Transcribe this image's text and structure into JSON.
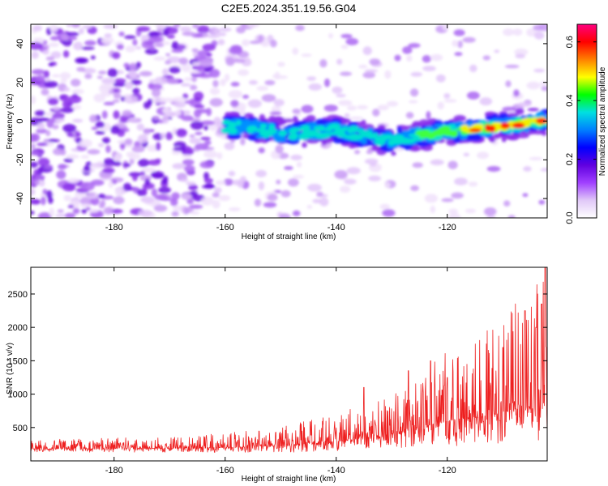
{
  "title": "C2E5.2024.351.19.56.G04",
  "chart_data": [
    {
      "type": "heatmap",
      "xlabel": "Height of straight line (km)",
      "ylabel": "Frequency (Hz)",
      "xlim": [
        -195,
        -102
      ],
      "ylim": [
        -50,
        50
      ],
      "xticks": [
        -180,
        -160,
        -140,
        -120
      ],
      "yticks": [
        -40,
        -20,
        0,
        20,
        40
      ],
      "colorbar": {
        "label": "Normalized spectral amplitude",
        "range": [
          0.0,
          0.66
        ],
        "ticks": [
          0.0,
          0.2,
          0.4,
          0.6
        ],
        "colors": [
          "#ffffff",
          "#e0c8f8",
          "#a040ff",
          "#6000e0",
          "#0000ff",
          "#0080ff",
          "#00e0e0",
          "#00ff00",
          "#ffff00",
          "#ff8000",
          "#ff0000",
          "#ff0080"
        ]
      },
      "ridge": {
        "description": "high-amplitude band centred near 0 Hz",
        "x_start": -160,
        "x_end": -102,
        "centre_hz": [
          {
            "x": -157,
            "y": -3
          },
          {
            "x": -150,
            "y": -6
          },
          {
            "x": -140,
            "y": -5
          },
          {
            "x": -130,
            "y": -10
          },
          {
            "x": -122,
            "y": -6
          },
          {
            "x": -115,
            "y": -4
          },
          {
            "x": -108,
            "y": -2
          },
          {
            "x": -103,
            "y": 0
          }
        ]
      }
    },
    {
      "type": "line",
      "xlabel": "Height of straight line (km)",
      "ylabel": "SNR (10 * v/v)",
      "xlim": [
        -195,
        -102
      ],
      "ylim": [
        0,
        2900
      ],
      "xticks": [
        -180,
        -160,
        -140,
        -120
      ],
      "yticks": [
        500,
        1000,
        1500,
        2000,
        2500
      ],
      "color": "#ee2020",
      "envelope": [
        {
          "x": -195,
          "base": 180,
          "amp": 150
        },
        {
          "x": -170,
          "base": 190,
          "amp": 170
        },
        {
          "x": -160,
          "base": 200,
          "amp": 220
        },
        {
          "x": -150,
          "base": 230,
          "amp": 300
        },
        {
          "x": -140,
          "base": 290,
          "amp": 420
        },
        {
          "x": -130,
          "base": 400,
          "amp": 600
        },
        {
          "x": -125,
          "base": 500,
          "amp": 900
        },
        {
          "x": -120,
          "base": 600,
          "amp": 1100
        },
        {
          "x": -112,
          "base": 700,
          "amp": 1300
        },
        {
          "x": -106,
          "base": 800,
          "amp": 1700
        },
        {
          "x": -102,
          "base": 900,
          "amp": 2200
        }
      ],
      "peaks": [
        {
          "x": -135,
          "y": 1100
        },
        {
          "x": -127,
          "y": 1350
        },
        {
          "x": -123,
          "y": 1500
        },
        {
          "x": -120,
          "y": 1250
        },
        {
          "x": -110,
          "y": 1700
        },
        {
          "x": -106,
          "y": 2250
        },
        {
          "x": -104,
          "y": 2000
        },
        {
          "x": -103,
          "y": 2350
        },
        {
          "x": -102.4,
          "y": 2900
        }
      ]
    }
  ]
}
